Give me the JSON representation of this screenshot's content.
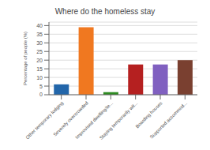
{
  "chart_data": {
    "type": "bar",
    "title": "Where do the homeless stay",
    "categories": [
      "Other temporary lodging",
      "Severely overcrowded",
      "Improvised dwelling/te...",
      "Staying temporarily wit...",
      "Boarding houses",
      "Supported accommod..."
    ],
    "values": [
      6,
      39,
      1.5,
      17.5,
      17.5,
      20
    ],
    "colors": [
      "#2266aa",
      "#f07820",
      "#2e8b22",
      "#b52020",
      "#8060c0",
      "#7a4030"
    ],
    "ylabel": "Percentage of people (%)",
    "ylim": [
      0,
      42
    ],
    "yticks": [
      0,
      5,
      10,
      15,
      20,
      25,
      30,
      35,
      40
    ],
    "grid": true
  }
}
